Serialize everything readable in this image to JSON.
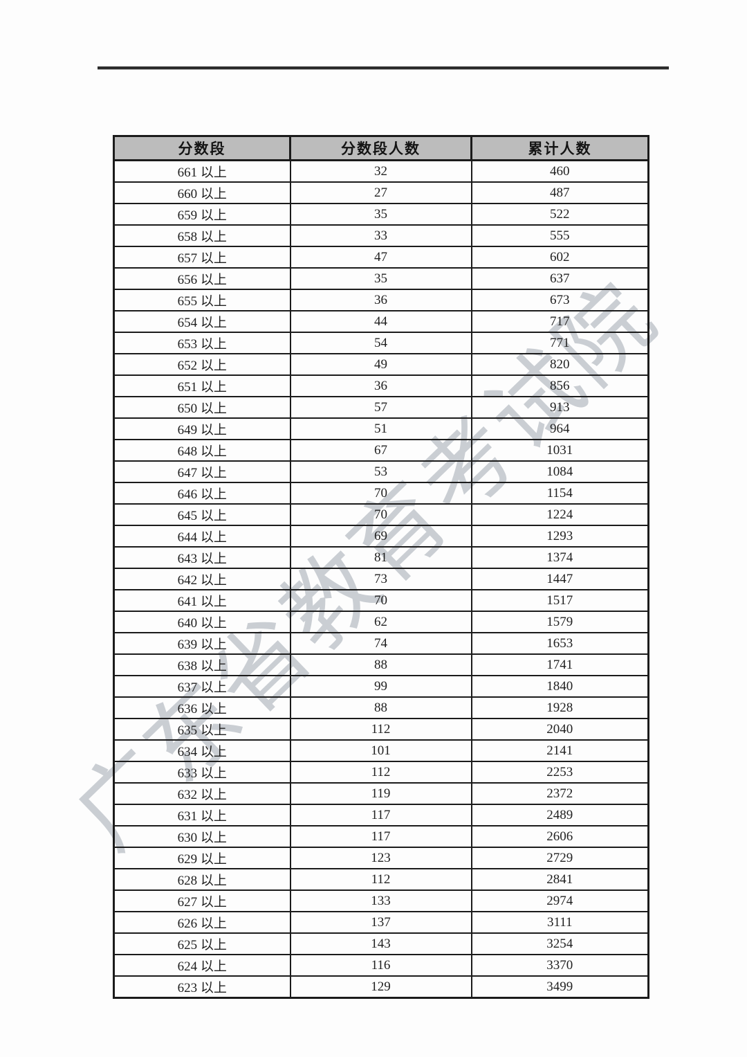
{
  "page": {
    "background_color": "#fdfdfd"
  },
  "watermark": {
    "text": "广东省教育考试院",
    "color": "#caced3"
  },
  "divider": {
    "color": "#2c2c2c"
  },
  "table": {
    "header_bg": "#bcbcbc",
    "border_color": "#1b1b1b",
    "headers": [
      "分数段",
      "分数段人数",
      "累计人数"
    ],
    "rows": [
      [
        "661 以上",
        "32",
        "460"
      ],
      [
        "660 以上",
        "27",
        "487"
      ],
      [
        "659 以上",
        "35",
        "522"
      ],
      [
        "658 以上",
        "33",
        "555"
      ],
      [
        "657 以上",
        "47",
        "602"
      ],
      [
        "656 以上",
        "35",
        "637"
      ],
      [
        "655 以上",
        "36",
        "673"
      ],
      [
        "654 以上",
        "44",
        "717"
      ],
      [
        "653 以上",
        "54",
        "771"
      ],
      [
        "652 以上",
        "49",
        "820"
      ],
      [
        "651 以上",
        "36",
        "856"
      ],
      [
        "650 以上",
        "57",
        "913"
      ],
      [
        "649 以上",
        "51",
        "964"
      ],
      [
        "648 以上",
        "67",
        "1031"
      ],
      [
        "647 以上",
        "53",
        "1084"
      ],
      [
        "646 以上",
        "70",
        "1154"
      ],
      [
        "645 以上",
        "70",
        "1224"
      ],
      [
        "644 以上",
        "69",
        "1293"
      ],
      [
        "643 以上",
        "81",
        "1374"
      ],
      [
        "642 以上",
        "73",
        "1447"
      ],
      [
        "641 以上",
        "70",
        "1517"
      ],
      [
        "640 以上",
        "62",
        "1579"
      ],
      [
        "639 以上",
        "74",
        "1653"
      ],
      [
        "638 以上",
        "88",
        "1741"
      ],
      [
        "637 以上",
        "99",
        "1840"
      ],
      [
        "636 以上",
        "88",
        "1928"
      ],
      [
        "635 以上",
        "112",
        "2040"
      ],
      [
        "634 以上",
        "101",
        "2141"
      ],
      [
        "633 以上",
        "112",
        "2253"
      ],
      [
        "632 以上",
        "119",
        "2372"
      ],
      [
        "631 以上",
        "117",
        "2489"
      ],
      [
        "630 以上",
        "117",
        "2606"
      ],
      [
        "629 以上",
        "123",
        "2729"
      ],
      [
        "628 以上",
        "112",
        "2841"
      ],
      [
        "627 以上",
        "133",
        "2974"
      ],
      [
        "626 以上",
        "137",
        "3111"
      ],
      [
        "625 以上",
        "143",
        "3254"
      ],
      [
        "624 以上",
        "116",
        "3370"
      ],
      [
        "623 以上",
        "129",
        "3499"
      ]
    ]
  }
}
